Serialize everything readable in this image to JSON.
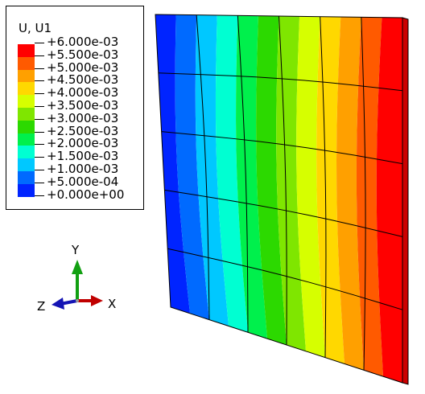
{
  "legend": {
    "title": "U, U1",
    "entries": [
      {
        "label": "+6.000e-03",
        "color": "#ff0000"
      },
      {
        "label": "+5.500e-03",
        "color": "#ff5a00"
      },
      {
        "label": "+5.000e-03",
        "color": "#ffa000"
      },
      {
        "label": "+4.500e-03",
        "color": "#ffd800"
      },
      {
        "label": "+4.000e-03",
        "color": "#d6ff00"
      },
      {
        "label": "+3.500e-03",
        "color": "#7fe600"
      },
      {
        "label": "+3.000e-03",
        "color": "#2cd900"
      },
      {
        "label": "+2.500e-03",
        "color": "#00f04c"
      },
      {
        "label": "+2.000e-03",
        "color": "#00ffd2"
      },
      {
        "label": "+1.500e-03",
        "color": "#00c8ff"
      },
      {
        "label": "+1.000e-03",
        "color": "#006aff"
      },
      {
        "label": "+5.000e-04",
        "color": "#0024ff"
      },
      {
        "label": "+0.000e+00",
        "color": ""
      }
    ]
  },
  "triad": {
    "x_label": "X",
    "y_label": "Y",
    "z_label": "Z",
    "x_color": "#c00000",
    "y_color": "#12a012",
    "z_color": "#1414b4"
  },
  "contour_bands": [
    "#0024ff",
    "#006aff",
    "#00c8ff",
    "#00ffd2",
    "#00f04c",
    "#2cd900",
    "#7fe600",
    "#d6ff00",
    "#ffd800",
    "#ffa000",
    "#ff5a00",
    "#ff0000"
  ]
}
